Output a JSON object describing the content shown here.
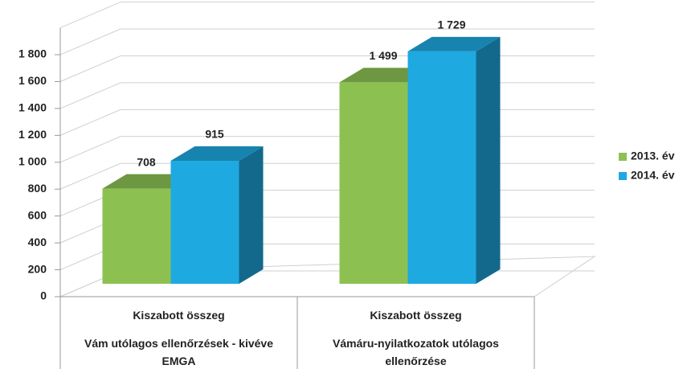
{
  "chart_data": {
    "type": "bar3d",
    "categories": [
      "Kiszabott összeg",
      "Kiszabott összeg"
    ],
    "category_groups": [
      "Vám utólagos ellenőrzések - kivéve EMGA",
      "Vámáru-nyilatkozatok utólagos ellenőrzése"
    ],
    "series": [
      {
        "name": "2013. év",
        "color": "#8cc152",
        "values": [
          708,
          1499
        ],
        "value_labels": [
          "708",
          "1 499"
        ]
      },
      {
        "name": "2014. év",
        "color": "#1ea9e1",
        "values": [
          915,
          1729
        ],
        "value_labels": [
          "915",
          "1 729"
        ]
      }
    ],
    "ylim": [
      0,
      2000
    ],
    "yticks": [
      0,
      200,
      400,
      600,
      800,
      {
        "value": 1000,
        "label": "1 000"
      },
      {
        "value": 1200,
        "label": "1 200"
      },
      {
        "value": 1400,
        "label": "1 400"
      },
      {
        "value": 1600,
        "label": "1 600"
      },
      {
        "value": 1800,
        "label": "1 800"
      }
    ],
    "grid": true,
    "legend": "right"
  }
}
